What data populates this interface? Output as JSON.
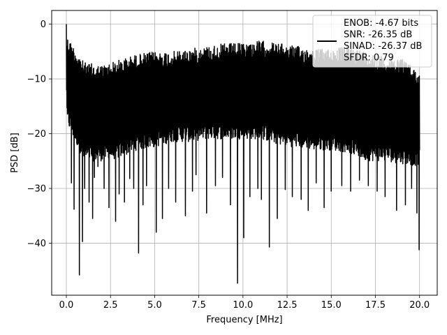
{
  "chart_data": {
    "type": "line",
    "xlabel": "Frequency [MHz]",
    "ylabel": "PSD [dB]",
    "xlim": [
      -0.83,
      21.0
    ],
    "ylim": [
      -49.5,
      2.5
    ],
    "xticks": [
      0.0,
      2.5,
      5.0,
      7.5,
      10.0,
      12.5,
      15.0,
      17.5,
      20.0
    ],
    "xtick_labels": [
      "0.0",
      "2.5",
      "5.0",
      "7.5",
      "10.0",
      "12.5",
      "15.0",
      "17.5",
      "20.0"
    ],
    "yticks": [
      0,
      -10,
      -20,
      -30,
      -40
    ],
    "ytick_labels": [
      "0",
      "−10",
      "−20",
      "−30",
      "−40"
    ],
    "grid": true,
    "legend_position": "top-right",
    "line_color": "#000000",
    "series": [
      {
        "legend_lines": [
          "ENOB: -4.67 bits",
          "SNR: -26.35 dB",
          "SINAD: -26.37 dB",
          "SFDR: 0.79"
        ],
        "x_range": [
          0.0,
          20.0
        ],
        "y_peak": 0.0,
        "envelope_upper": [
          [
            0.0,
            -2.0
          ],
          [
            1.0,
            -7.0
          ],
          [
            2.0,
            -7.5
          ],
          [
            3.0,
            -6.5
          ],
          [
            4.0,
            -5.5
          ],
          [
            5.0,
            -5.0
          ],
          [
            6.0,
            -5.0
          ],
          [
            7.0,
            -4.5
          ],
          [
            8.0,
            -4.0
          ],
          [
            9.0,
            -3.5
          ],
          [
            10.0,
            -3.5
          ],
          [
            11.0,
            -3.0
          ],
          [
            12.0,
            -3.5
          ],
          [
            13.0,
            -4.0
          ],
          [
            14.0,
            -4.5
          ],
          [
            15.0,
            -4.5
          ],
          [
            16.0,
            -4.0
          ],
          [
            17.0,
            -5.0
          ],
          [
            18.0,
            -6.0
          ],
          [
            19.0,
            -6.0
          ],
          [
            20.0,
            -9.0
          ]
        ],
        "envelope_lower": [
          [
            0.0,
            -18.0
          ],
          [
            1.0,
            -25.0
          ],
          [
            2.0,
            -25.0
          ],
          [
            3.0,
            -24.5
          ],
          [
            4.0,
            -23.0
          ],
          [
            5.0,
            -22.5
          ],
          [
            6.0,
            -21.5
          ],
          [
            7.0,
            -21.5
          ],
          [
            8.0,
            -21.0
          ],
          [
            9.0,
            -21.0
          ],
          [
            10.0,
            -21.0
          ],
          [
            11.0,
            -21.0
          ],
          [
            12.0,
            -22.0
          ],
          [
            13.0,
            -22.5
          ],
          [
            14.0,
            -23.0
          ],
          [
            15.0,
            -23.0
          ],
          [
            16.0,
            -23.5
          ],
          [
            17.0,
            -25.0
          ],
          [
            18.0,
            -25.0
          ],
          [
            19.0,
            -25.5
          ],
          [
            20.0,
            -26.0
          ]
        ],
        "dips": [
          [
            0.28,
            -29.0
          ],
          [
            0.45,
            -33.8
          ],
          [
            0.75,
            -45.8
          ],
          [
            0.92,
            -39.7
          ],
          [
            1.05,
            -30.0
          ],
          [
            1.28,
            -32.5
          ],
          [
            1.48,
            -35.5
          ],
          [
            1.6,
            -28.0
          ],
          [
            1.78,
            -26.0
          ],
          [
            2.15,
            -30.0
          ],
          [
            2.42,
            -33.5
          ],
          [
            2.68,
            -24.0
          ],
          [
            2.78,
            -36.0
          ],
          [
            3.0,
            -31.0
          ],
          [
            3.28,
            -32.5
          ],
          [
            3.6,
            -28.2
          ],
          [
            3.82,
            -30.0
          ],
          [
            4.1,
            -41.8
          ],
          [
            4.35,
            -33.0
          ],
          [
            4.55,
            -29.5
          ],
          [
            5.08,
            -38.0
          ],
          [
            5.45,
            -35.5
          ],
          [
            5.8,
            -30.0
          ],
          [
            6.2,
            -32.5
          ],
          [
            6.75,
            -35.0
          ],
          [
            7.15,
            -30.5
          ],
          [
            7.35,
            -27.5
          ],
          [
            7.95,
            -34.5
          ],
          [
            8.45,
            -29.5
          ],
          [
            8.85,
            -28.0
          ],
          [
            9.3,
            -33.0
          ],
          [
            9.7,
            -47.3
          ],
          [
            10.05,
            -39.0
          ],
          [
            10.4,
            -31.5
          ],
          [
            10.85,
            -30.0
          ],
          [
            11.05,
            -32.0
          ],
          [
            11.5,
            -40.7
          ],
          [
            11.95,
            -35.5
          ],
          [
            12.4,
            -30.2
          ],
          [
            12.8,
            -31.5
          ],
          [
            13.3,
            -32.0
          ],
          [
            13.7,
            -34.0
          ],
          [
            14.15,
            -29.0
          ],
          [
            14.6,
            -33.5
          ],
          [
            15.0,
            -30.5
          ],
          [
            15.6,
            -29.5
          ],
          [
            16.1,
            -30.5
          ],
          [
            16.6,
            -28.5
          ],
          [
            17.1,
            -29.5
          ],
          [
            17.6,
            -30.5
          ],
          [
            18.05,
            -31.5
          ],
          [
            18.7,
            -34.0
          ],
          [
            19.2,
            -33.0
          ],
          [
            19.55,
            -30.0
          ],
          [
            19.85,
            -34.5
          ],
          [
            19.98,
            -41.2
          ]
        ]
      }
    ]
  }
}
